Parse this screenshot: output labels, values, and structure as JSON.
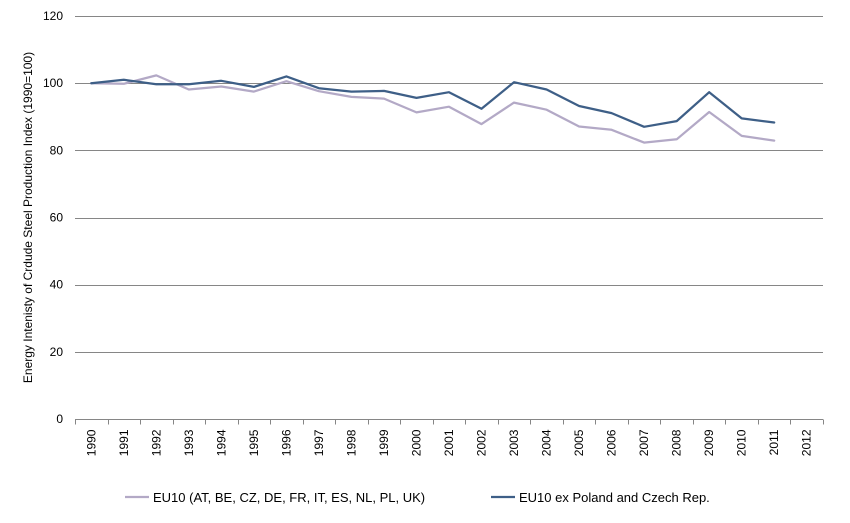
{
  "chart_data": {
    "type": "line",
    "title": "",
    "xlabel": "",
    "ylabel": "Energy Intenisty of Crdude Steel Production Index (1990=100)",
    "categories": [
      "1990",
      "1991",
      "1992",
      "1993",
      "1994",
      "1995",
      "1996",
      "1997",
      "1998",
      "1999",
      "2000",
      "2001",
      "2002",
      "2003",
      "2004",
      "2005",
      "2006",
      "2007",
      "2008",
      "2009",
      "2010",
      "2011",
      "2012"
    ],
    "ylim": [
      0,
      120
    ],
    "yticks": [
      "0",
      "20",
      "40",
      "60",
      "80",
      "100",
      "120"
    ],
    "grid": true,
    "legend_position": "bottom",
    "series": [
      {
        "name": "EU10 (AT, BE, CZ, DE, FR, IT, ES, NL, PL, UK)",
        "color": "#b3a9c6",
        "values": [
          100,
          99.8,
          102.3,
          98.1,
          99.0,
          97.5,
          100.6,
          97.6,
          95.9,
          95.4,
          91.3,
          93.0,
          87.8,
          94.2,
          92.1,
          87.1,
          86.1,
          82.3,
          83.3,
          91.4,
          84.3,
          82.9,
          null
        ]
      },
      {
        "name": "EU10 ex Poland and Czech Rep.",
        "color": "#3e5f87",
        "values": [
          100,
          101.0,
          99.7,
          99.7,
          100.7,
          98.9,
          102.0,
          98.5,
          97.5,
          97.7,
          95.6,
          97.3,
          92.4,
          100.3,
          98.1,
          93.2,
          91.1,
          87.0,
          88.7,
          97.3,
          89.5,
          88.3,
          null
        ]
      }
    ]
  }
}
